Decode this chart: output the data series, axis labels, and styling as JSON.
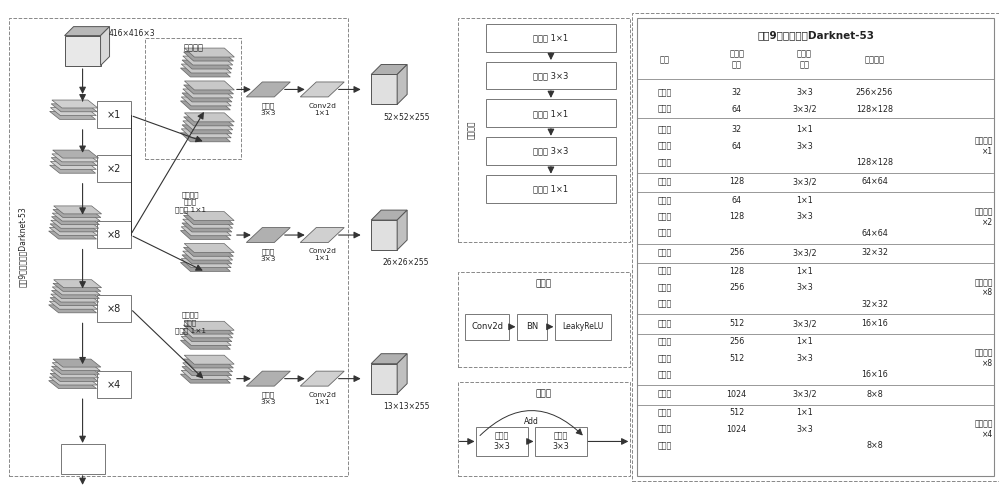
{
  "bg": "#ffffff",
  "gray1": "#aaaaaa",
  "gray2": "#cccccc",
  "gray3": "#e8e8e8",
  "gray4": "#b8b8b8",
  "ec": "#777777",
  "ec2": "#555555",
  "arrow_c": "#333333",
  "font_c": "#222222",
  "left_label": "去挸9全连接层的Darknet-53",
  "input_label": "416×416×3",
  "x1": "×1",
  "x2": "×2",
  "x8": "×8",
  "x4": "×4",
  "conv_set": "卷积集合",
  "feat_cat": "特征拼接\n上采样\n卷积块 1×1",
  "conv33": "卷积块\n3×3",
  "conv2d11": "Conv2d\n1×1",
  "out1": "52×52×255",
  "out2": "26×26×255",
  "out3": "13×13×255",
  "right_label": "卷积集合",
  "cv11": "卷积块 1×1",
  "cv33": "卷积块 3×3",
  "conv_block_title": "卷积块",
  "resid_title": "残差块",
  "add_label": "Add",
  "conv2d": "Conv2d",
  "bn": "BN",
  "relu": "LeakyReLU",
  "cv33b": "卷积块\n3×3",
  "table_title": "去挸9全连接层的Darknet-53",
  "th1": "类型",
  "th2": "滤波器\n数量",
  "th3": "卷积核\n大小",
  "th4": "输出大小",
  "table_rows": [
    [
      "卷积块",
      "32",
      "3×3",
      "256×256",
      ""
    ],
    [
      "卷积块",
      "64",
      "3×3/2",
      "128×128",
      ""
    ],
    [
      "卷积块",
      "32",
      "1×1",
      "",
      ""
    ],
    [
      "卷积块",
      "64",
      "3×3",
      "",
      ""
    ],
    [
      "残差块",
      "",
      "",
      "128×128",
      "残差单元\n×1"
    ],
    [
      "卷积块",
      "128",
      "3×3/2",
      "64×64",
      ""
    ],
    [
      "卷积块",
      "64",
      "1×1",
      "",
      ""
    ],
    [
      "卷积块",
      "128",
      "3×3",
      "",
      ""
    ],
    [
      "残差块",
      "",
      "",
      "64×64",
      "残差单元\n×2"
    ],
    [
      "卷积块",
      "256",
      "3×3/2",
      "32×32",
      ""
    ],
    [
      "卷积块",
      "128",
      "1×1",
      "",
      ""
    ],
    [
      "卷积块",
      "256",
      "3×3",
      "",
      ""
    ],
    [
      "残差块",
      "",
      "",
      "32×32",
      "残差单元\n×8"
    ],
    [
      "卷积块",
      "512",
      "3×3/2",
      "16×16",
      ""
    ],
    [
      "卷积块",
      "256",
      "1×1",
      "",
      ""
    ],
    [
      "卷积块",
      "512",
      "3×3",
      "",
      ""
    ],
    [
      "残差块",
      "",
      "",
      "16×16",
      "残差单元\n×8"
    ],
    [
      "卷积块",
      "1024",
      "3×3/2",
      "8×8",
      ""
    ],
    [
      "卷积块",
      "512",
      "1×1",
      "",
      ""
    ],
    [
      "卷积块",
      "1024",
      "3×3",
      "",
      ""
    ],
    [
      "残差块",
      "",
      "",
      "8×8",
      "残差单元\n×4"
    ]
  ]
}
